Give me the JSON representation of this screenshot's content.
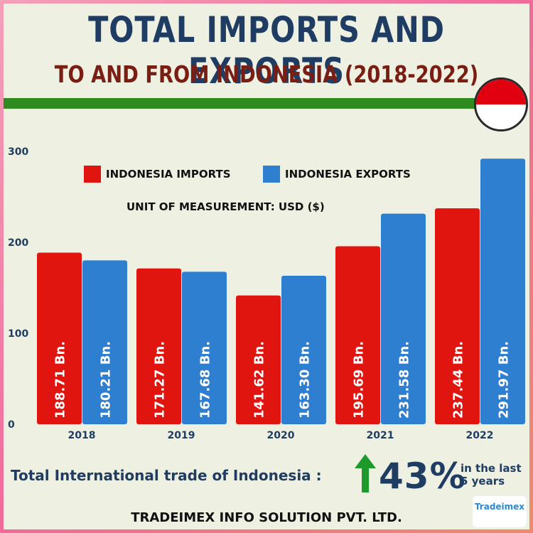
{
  "header": {
    "title": "TOTAL IMPORTS AND EXPORTS",
    "subtitle": "TO AND FROM INDONESIA (2018-2022)"
  },
  "chart_data": {
    "type": "bar",
    "categories": [
      "2018",
      "2019",
      "2020",
      "2021",
      "2022"
    ],
    "series": [
      {
        "name": "INDONESIA IMPORTS",
        "color": "#e0150f",
        "values": [
          188.71,
          171.27,
          141.62,
          195.69,
          237.44
        ],
        "labels": [
          "188.71 Bn.",
          "171.27 Bn.",
          "141.62 Bn.",
          "195.69 Bn.",
          "237.44 Bn."
        ]
      },
      {
        "name": "INDONESIA EXPORTS",
        "color": "#2f7fd0",
        "values": [
          180.21,
          167.68,
          163.3,
          231.58,
          291.97
        ],
        "labels": [
          "180.21 Bn.",
          "167.68 Bn.",
          "163.30 Bn.",
          "231.58 Bn.",
          "291.97 Bn."
        ]
      }
    ],
    "unit_label": "UNIT OF MEASUREMENT: USD ($)",
    "yticks": [
      "0",
      "100",
      "200",
      "300"
    ],
    "ylim": [
      0,
      300
    ],
    "grid": false,
    "legend": "top-left"
  },
  "footer": {
    "trade_label": "Total International trade of Indonesia :",
    "growth": "43%",
    "period_line1": "in the last",
    "period_line2": "5 years",
    "company": "TRADEIMEX INFO SOLUTION PVT. LTD.",
    "logo_text": "Tradeimex",
    "up_arrow_color": "#1e9a2a"
  }
}
